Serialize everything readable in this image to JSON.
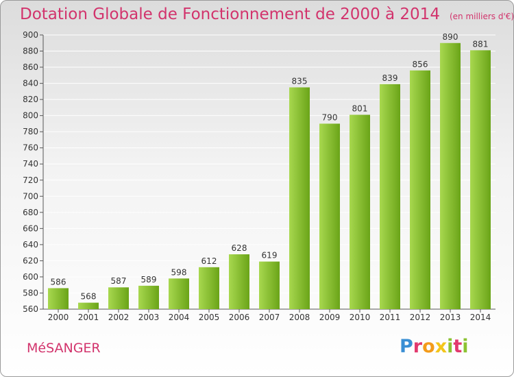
{
  "title": "Dotation Globale de Fonctionnement de 2000 à 2014",
  "subtitle": "(en milliers d'€)",
  "town": "MéSANGER",
  "logo": "Proxiti",
  "colors": {
    "title": "#d2336c",
    "bar_light": "#a8d84f",
    "bar_dark": "#6aa418",
    "grid": "#ffffff"
  },
  "chart_data": {
    "type": "bar",
    "title": "Dotation Globale de Fonctionnement de 2000 à 2014",
    "subtitle": "(en milliers d'€)",
    "categories": [
      "2000",
      "2001",
      "2002",
      "2003",
      "2004",
      "2005",
      "2006",
      "2007",
      "2008",
      "2009",
      "2010",
      "2011",
      "2012",
      "2013",
      "2014"
    ],
    "values": [
      586,
      568,
      587,
      589,
      598,
      612,
      628,
      619,
      835,
      790,
      801,
      839,
      856,
      890,
      881
    ],
    "ylim": [
      560,
      900
    ],
    "yticks": [
      560,
      580,
      600,
      620,
      640,
      660,
      680,
      700,
      720,
      740,
      760,
      780,
      800,
      820,
      840,
      860,
      880,
      900
    ],
    "grid": true,
    "xlabel": "",
    "ylabel": ""
  }
}
